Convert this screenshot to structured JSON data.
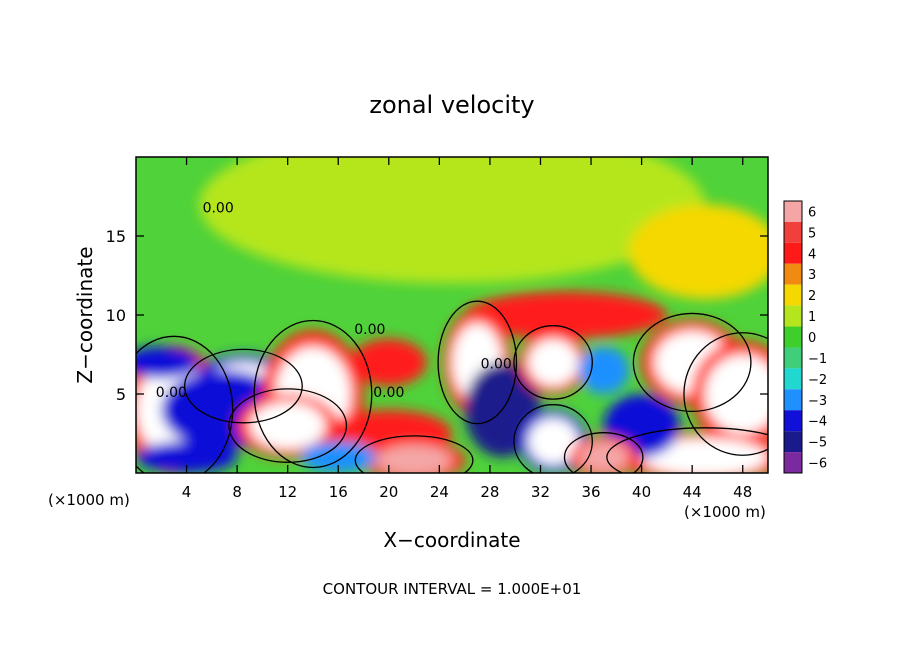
{
  "chart_data": {
    "type": "heatmap",
    "title": "zonal velocity",
    "xlabel": "X−coordinate",
    "ylabel": "Z−coordinate",
    "x_unit": "(×1000 m)",
    "xlim": [
      0,
      50
    ],
    "ylim": [
      0,
      20
    ],
    "xticks": [
      4,
      8,
      12,
      16,
      20,
      24,
      28,
      32,
      36,
      40,
      44,
      48
    ],
    "yticks": [
      5,
      10,
      15
    ],
    "footer": "CONTOUR INTERVAL = 1.000E+01",
    "colorbar": {
      "levels": [
        6,
        5,
        4,
        3,
        2,
        1,
        0,
        -1,
        -2,
        -3,
        -4,
        -5,
        -6
      ],
      "colors": [
        "#f4a6a6",
        "#f0403c",
        "#ff1a1a",
        "#f08a10",
        "#f5d800",
        "#b5e61d",
        "#3fcf2a",
        "#3fcf7a",
        "#20d8d0",
        "#1e90ff",
        "#1010d8",
        "#1a1a8c",
        "#7a2a9e"
      ]
    },
    "contour_labels": [
      {
        "text": "0.00",
        "x": 6.5,
        "y": 16.5
      },
      {
        "text": "0.00",
        "x": 18.5,
        "y": 8.8
      },
      {
        "text": "0.00",
        "x": 20.0,
        "y": 4.8
      },
      {
        "text": "0.00",
        "x": 2.8,
        "y": 4.8
      },
      {
        "text": "0.00",
        "x": 28.5,
        "y": 6.6
      }
    ],
    "field_blobs": [
      {
        "x": 25,
        "y": 17,
        "rx": 20,
        "ry": 5,
        "v": 0.7
      },
      {
        "x": 45,
        "y": 14,
        "rx": 6,
        "ry": 3,
        "v": 2.0
      },
      {
        "x": 34,
        "y": 10,
        "rx": 8,
        "ry": 1.5,
        "v": 3.5
      },
      {
        "x": 3,
        "y": 4,
        "rx": 3,
        "ry": 3,
        "v": 6.5
      },
      {
        "x": 8.5,
        "y": 5.5,
        "rx": 3,
        "ry": 1.5,
        "v": -6.5
      },
      {
        "x": 7,
        "y": 4,
        "rx": 5,
        "ry": 2.5,
        "v": -4.5
      },
      {
        "x": 14,
        "y": 5,
        "rx": 3,
        "ry": 3,
        "v": 6.5
      },
      {
        "x": 12,
        "y": 3,
        "rx": 3,
        "ry": 1.5,
        "v": 6.5
      },
      {
        "x": 20,
        "y": 2.5,
        "rx": 5,
        "ry": 1.5,
        "v": 3.5
      },
      {
        "x": 27,
        "y": 7,
        "rx": 2,
        "ry": 2.5,
        "v": 6.5
      },
      {
        "x": 29,
        "y": 4,
        "rx": 3,
        "ry": 3,
        "v": -5.0
      },
      {
        "x": 33,
        "y": 2,
        "rx": 2,
        "ry": 1.5,
        "v": -6.5
      },
      {
        "x": 33,
        "y": 7,
        "rx": 2,
        "ry": 1.5,
        "v": 6.5
      },
      {
        "x": 37,
        "y": 6.5,
        "rx": 2,
        "ry": 1.5,
        "v": -3.0
      },
      {
        "x": 44,
        "y": 7,
        "rx": 3,
        "ry": 2,
        "v": 6.5
      },
      {
        "x": 48,
        "y": 5,
        "rx": 3,
        "ry": 2.5,
        "v": 6.5
      },
      {
        "x": 45,
        "y": 1,
        "rx": 5,
        "ry": 1.2,
        "v": 6.5
      },
      {
        "x": 40,
        "y": 3,
        "rx": 3,
        "ry": 2,
        "v": -4.5
      },
      {
        "x": 2,
        "y": 7,
        "rx": 3,
        "ry": 1,
        "v": -4.0
      },
      {
        "x": 20,
        "y": 7,
        "rx": 3,
        "ry": 1.5,
        "v": 4.0
      },
      {
        "x": 4,
        "y": 1,
        "rx": 4,
        "ry": 1,
        "v": -4.5
      },
      {
        "x": 22,
        "y": 0.8,
        "rx": 3,
        "ry": 1,
        "v": 6.0
      },
      {
        "x": 37,
        "y": 1,
        "rx": 2,
        "ry": 1,
        "v": 6.0
      },
      {
        "x": 16,
        "y": 1,
        "rx": 3,
        "ry": 1,
        "v": -3.5
      }
    ]
  }
}
